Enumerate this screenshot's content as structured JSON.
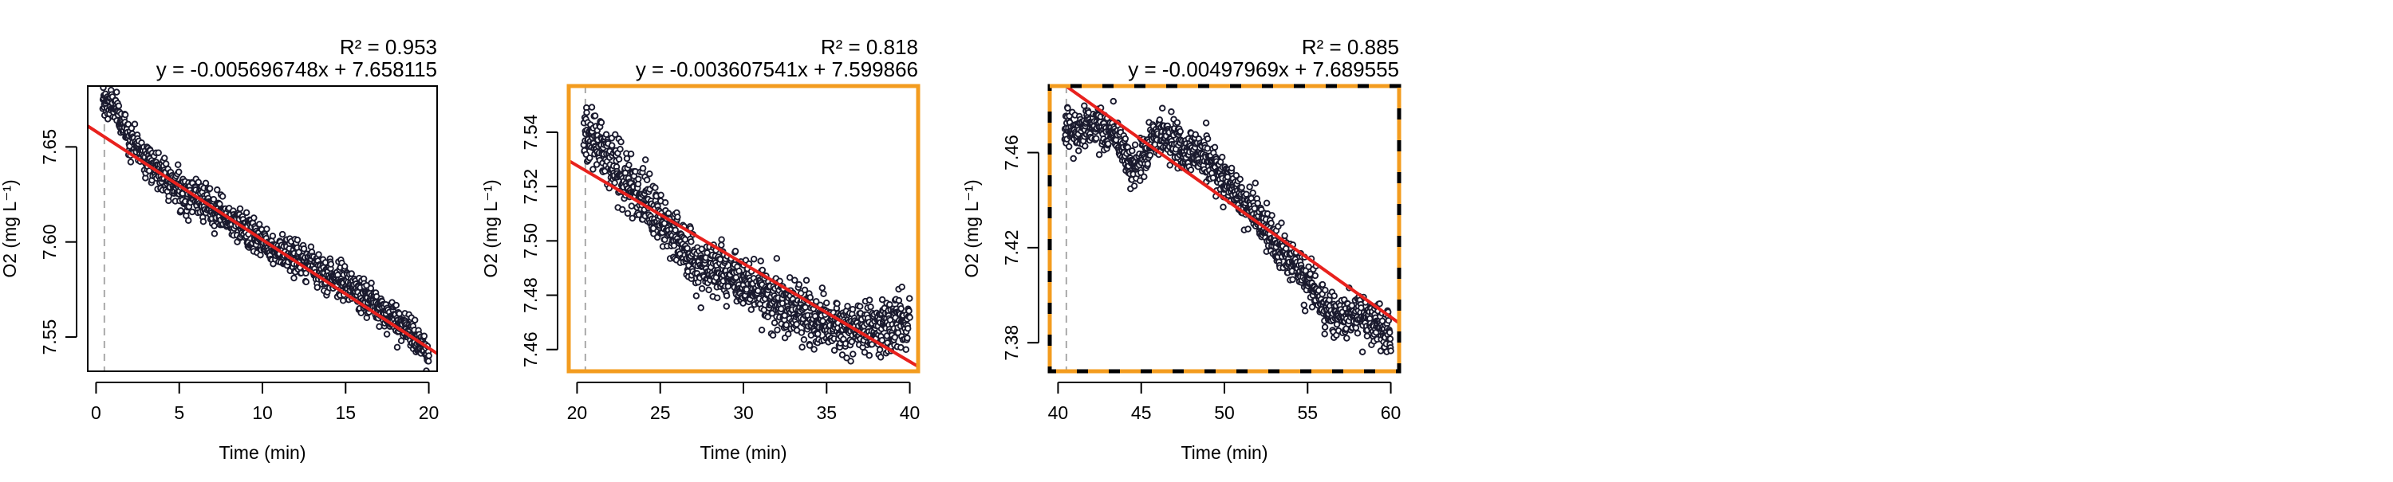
{
  "chart_data": [
    {
      "type": "scatter",
      "title": "",
      "xlabel": "Time (min)",
      "ylabel": "O2 (mg L⁻¹)",
      "annotation_r2": "R² = 0.953",
      "annotation_eq": "y = -0.005696748x + 7.658115",
      "xlim": [
        -0.5,
        20.5
      ],
      "ylim": [
        7.532,
        7.682
      ],
      "x_ticks": [
        "0",
        "5",
        "10",
        "15",
        "20"
      ],
      "y_ticks": [
        "7.55",
        "7.60",
        "7.65"
      ],
      "start_marker_x": 0.5,
      "fit": {
        "slope": -0.005696748,
        "intercept": 7.658115,
        "x_range": [
          -0.5,
          20.5
        ]
      },
      "frame": "solid-black",
      "scatter_noise": 0.008,
      "scatter_trend": [
        [
          0.4,
          7.673
        ],
        [
          1.0,
          7.672
        ],
        [
          2.0,
          7.655
        ],
        [
          3.5,
          7.64
        ],
        [
          5.0,
          7.628
        ],
        [
          7.5,
          7.615
        ],
        [
          10.0,
          7.6
        ],
        [
          12.5,
          7.59
        ],
        [
          15.0,
          7.578
        ],
        [
          17.5,
          7.562
        ],
        [
          19.0,
          7.551
        ],
        [
          20.0,
          7.542
        ]
      ],
      "colors": {
        "points": "#1a1a2e",
        "fit": "#e8211d",
        "frame": "#000000",
        "marker": "#aaaaaa"
      }
    },
    {
      "type": "scatter",
      "title": "",
      "xlabel": "Time (min)",
      "ylabel": "O2 (mg L⁻¹)",
      "annotation_r2": "R² = 0.818",
      "annotation_eq": "y = -0.003607541x + 7.599866",
      "xlim": [
        19.5,
        40.5
      ],
      "ylim": [
        7.452,
        7.557
      ],
      "x_ticks": [
        "20",
        "25",
        "30",
        "35",
        "40"
      ],
      "y_ticks": [
        "7.46",
        "7.48",
        "7.50",
        "7.52",
        "7.54"
      ],
      "start_marker_x": 20.5,
      "fit": {
        "slope": -0.003607541,
        "intercept": 7.599866,
        "x_range": [
          19.5,
          40.5
        ]
      },
      "frame": "solid-orange",
      "scatter_noise": 0.009,
      "scatter_trend": [
        [
          20.4,
          7.54
        ],
        [
          21.5,
          7.535
        ],
        [
          23.0,
          7.522
        ],
        [
          25.0,
          7.508
        ],
        [
          26.5,
          7.497
        ],
        [
          27.5,
          7.49
        ],
        [
          29.0,
          7.488
        ],
        [
          30.5,
          7.483
        ],
        [
          32.0,
          7.478
        ],
        [
          34.0,
          7.472
        ],
        [
          36.0,
          7.468
        ],
        [
          38.0,
          7.468
        ],
        [
          40.0,
          7.47
        ]
      ],
      "colors": {
        "points": "#1a1a2e",
        "fit": "#e8211d",
        "frame": "#f39c1f",
        "marker": "#aaaaaa"
      }
    },
    {
      "type": "scatter",
      "title": "",
      "xlabel": "Time (min)",
      "ylabel": "O2 (mg L⁻¹)",
      "annotation_r2": "R² = 0.885",
      "annotation_eq": "y = -0.00497969x + 7.689555",
      "xlim": [
        39.5,
        60.5
      ],
      "ylim": [
        7.368,
        7.488
      ],
      "x_ticks": [
        "40",
        "45",
        "50",
        "55",
        "60"
      ],
      "y_ticks": [
        "7.38",
        "7.42",
        "7.46"
      ],
      "start_marker_x": 40.5,
      "fit": {
        "slope": -0.00497969,
        "intercept": 7.689555,
        "x_range": [
          39.5,
          60.5
        ]
      },
      "frame": "dashed-orange",
      "scatter_noise": 0.008,
      "scatter_trend": [
        [
          40.4,
          7.468
        ],
        [
          42.0,
          7.472
        ],
        [
          43.5,
          7.468
        ],
        [
          44.5,
          7.452
        ],
        [
          46.0,
          7.468
        ],
        [
          47.5,
          7.462
        ],
        [
          49.0,
          7.458
        ],
        [
          50.5,
          7.445
        ],
        [
          52.0,
          7.432
        ],
        [
          53.5,
          7.418
        ],
        [
          55.0,
          7.405
        ],
        [
          56.5,
          7.392
        ],
        [
          58.0,
          7.392
        ],
        [
          59.5,
          7.385
        ],
        [
          60.0,
          7.385
        ]
      ],
      "colors": {
        "points": "#1a1a2e",
        "fit": "#e8211d",
        "frame": "#f39c1f",
        "marker": "#aaaaaa"
      }
    }
  ]
}
